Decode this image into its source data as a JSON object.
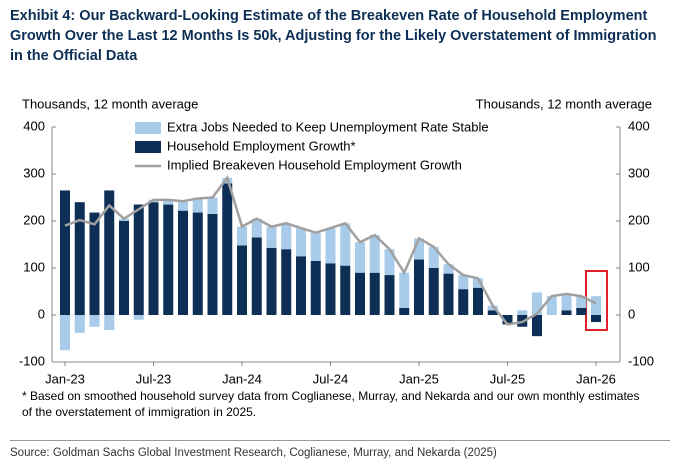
{
  "chart_data": {
    "type": "bar",
    "title": "Exhibit 4: Our Backward-Looking Estimate of the Breakeven Rate of Household Employment Growth Over the Last 12 Months Is 50k, Adjusting for the Likely Overstatement of Immigration in the Official Data",
    "y_label": "Thousands, 12 month average",
    "y2_label": "Thousands, 12 month average",
    "footnote": "* Based on smoothed household survey data from Coglianese, Murray, and Nekarda and our own monthly estimates of the overstatement of immigration in 2025.",
    "source": "Source: Goldman Sachs Global Investment Research, Coglianese, Murray, and Nekarda (2025)",
    "categories": [
      "Jan-23",
      null,
      null,
      null,
      null,
      null,
      "Jul-23",
      null,
      null,
      null,
      null,
      null,
      "Jan-24",
      null,
      null,
      null,
      null,
      null,
      "Jul-24",
      null,
      null,
      null,
      null,
      null,
      "Jan-25",
      null,
      null,
      null,
      null,
      null,
      "Jul-25",
      null,
      null,
      null,
      null,
      null,
      "Jan-26"
    ],
    "series": [
      {
        "name": "Extra Jobs Needed to Keep Unemployment Rate Stable",
        "color": "#a7cbe8",
        "role": "stack",
        "values": [
          -75,
          -38,
          -25,
          -32,
          5,
          -10,
          5,
          10,
          20,
          30,
          35,
          12,
          40,
          40,
          45,
          55,
          60,
          60,
          75,
          90,
          65,
          80,
          55,
          75,
          45,
          45,
          20,
          30,
          20,
          10,
          0,
          10,
          48,
          40,
          35,
          25,
          40
        ]
      },
      {
        "name": "Household Employment Growth*",
        "color": "#0d2f55",
        "role": "base",
        "values": [
          265,
          240,
          218,
          265,
          200,
          235,
          240,
          235,
          222,
          218,
          215,
          280,
          148,
          165,
          143,
          140,
          125,
          115,
          110,
          105,
          90,
          90,
          85,
          15,
          118,
          100,
          88,
          55,
          58,
          10,
          -20,
          -25,
          -45,
          0,
          10,
          15,
          -15
        ]
      },
      {
        "name": "Implied Breakeven Household Employment Growth",
        "color": "#a0a0a0",
        "role": "line",
        "values": [
          190,
          202,
          193,
          233,
          205,
          225,
          245,
          245,
          242,
          248,
          250,
          292,
          188,
          205,
          188,
          195,
          185,
          175,
          185,
          195,
          155,
          170,
          140,
          90,
          163,
          145,
          108,
          85,
          78,
          20,
          -20,
          -15,
          3,
          40,
          45,
          40,
          25
        ]
      }
    ],
    "ylim": [
      -100,
      400
    ],
    "yticks": [
      -100,
      0,
      100,
      200,
      300,
      400
    ],
    "y2lim": [
      -100,
      400
    ],
    "y2ticks": [
      -100,
      0,
      100,
      200,
      300,
      400
    ],
    "legend": "upper left"
  }
}
